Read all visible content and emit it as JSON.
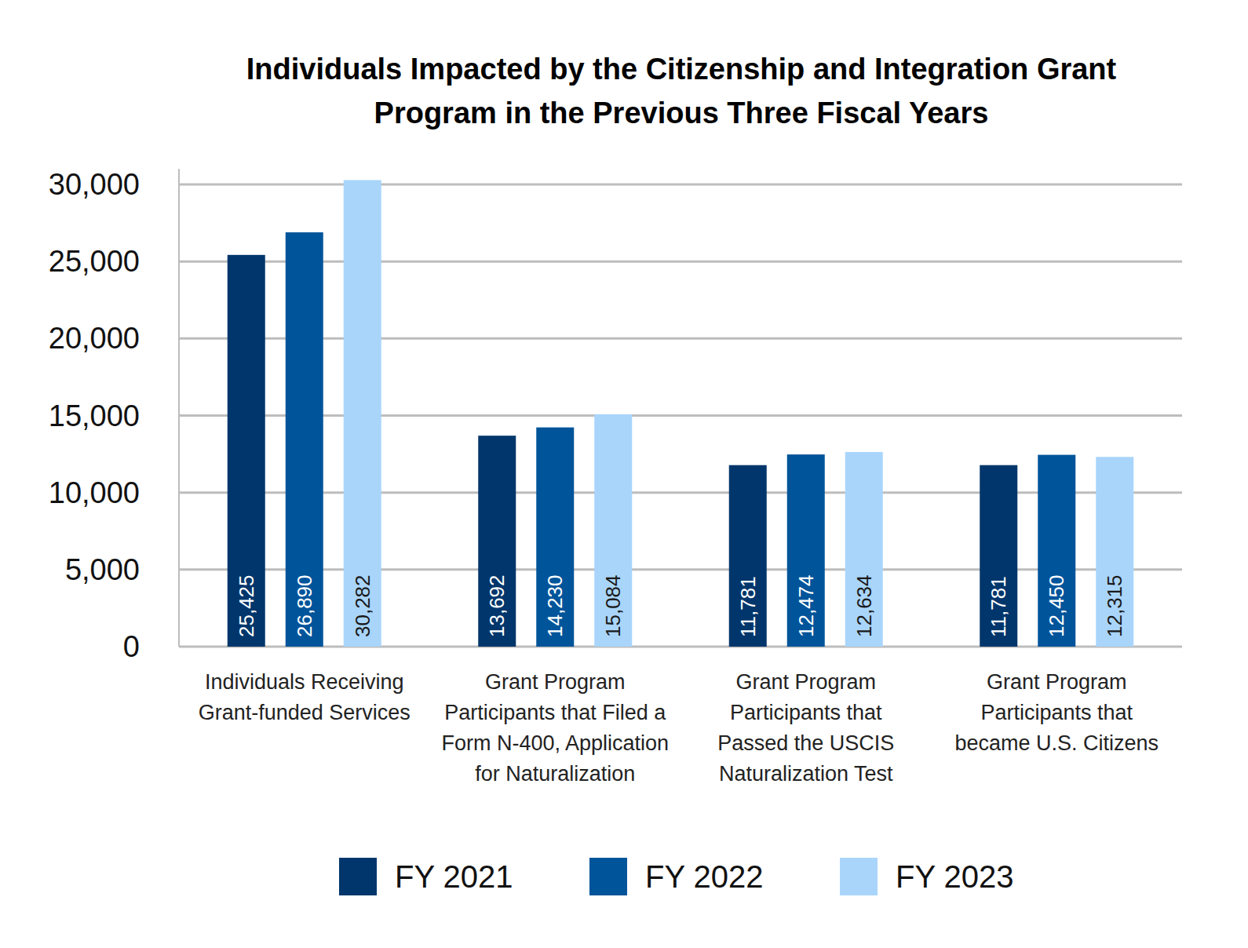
{
  "chart_data": {
    "type": "bar",
    "title": "Individuals Impacted by the Citizenship and Integration Grant Program in the Previous Three Fiscal Years",
    "categories": [
      "Individuals Receiving Grant-funded Services",
      "Grant Program Participants that Filed a Form N-400, Application for Naturalization",
      "Grant Program Participants that Passed the USCIS Naturalization Test",
      "Grant Program Participants that became U.S. Citizens"
    ],
    "series": [
      {
        "name": "FY 2021",
        "color": "#00366b",
        "values": [
          25425,
          13692,
          11781,
          11781
        ],
        "value_labels": [
          "25,425",
          "13,692",
          "11,781",
          "11,781"
        ]
      },
      {
        "name": "FY 2022",
        "color": "#00549a",
        "values": [
          26890,
          14230,
          12474,
          12450
        ],
        "value_labels": [
          "26,890",
          "14,230",
          "12,474",
          "12,450"
        ]
      },
      {
        "name": "FY 2023",
        "color": "#a9d5fb",
        "values": [
          30282,
          15084,
          12634,
          12315
        ],
        "value_labels": [
          "30,282",
          "15,084",
          "12,634",
          "12,315"
        ]
      }
    ],
    "ylim": [
      0,
      31000
    ],
    "yticks": [
      0,
      {
        "value": 5000,
        "label": "5,000"
      },
      {
        "value": 10000,
        "label": "10,000"
      },
      {
        "value": 15000,
        "label": "15,000"
      },
      {
        "value": 20000,
        "label": "20,000"
      },
      {
        "value": 25000,
        "label": "25,000"
      },
      {
        "value": 30000,
        "label": "30,000"
      }
    ],
    "grid": true,
    "data_labels": true,
    "legend": "bottom"
  }
}
